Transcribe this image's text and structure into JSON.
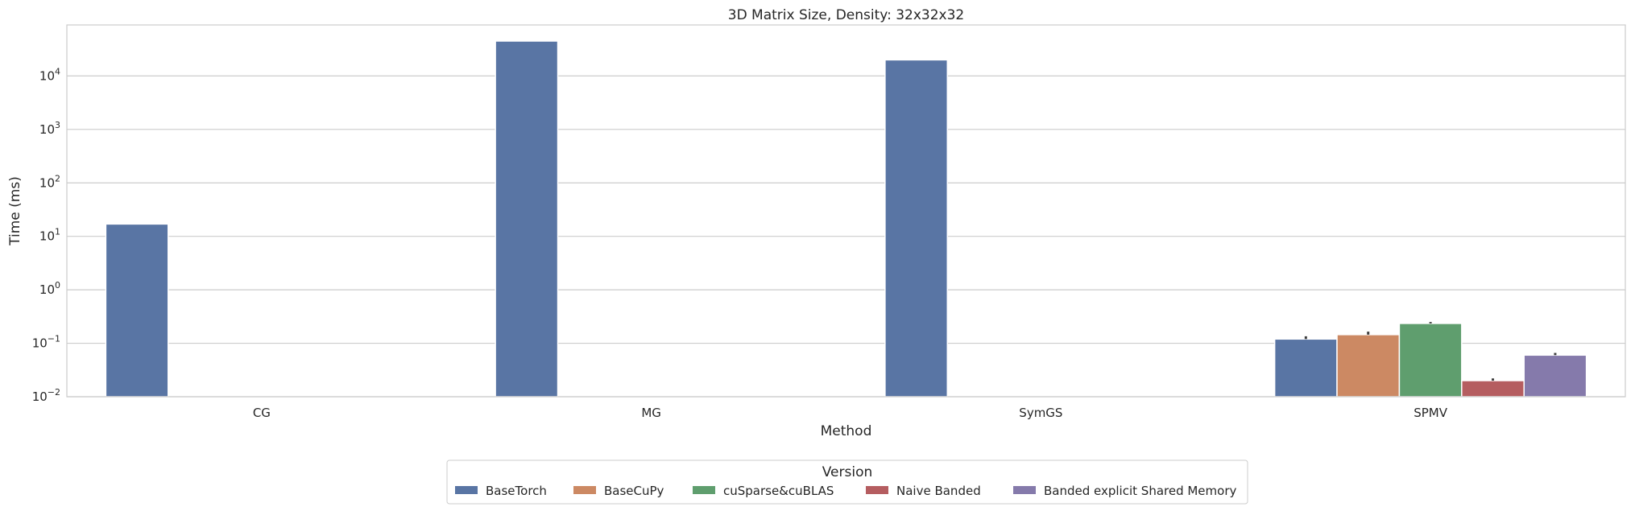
{
  "chart_data": {
    "type": "bar",
    "title": "3D Matrix Size, Density: 32x32x32",
    "xlabel": "Method",
    "ylabel": "Time (ms)",
    "yscale": "log",
    "ylim": [
      0.01,
      90000
    ],
    "yticks": [
      {
        "value": 0.01,
        "base": "10",
        "exp": "−2"
      },
      {
        "value": 0.1,
        "base": "10",
        "exp": "−1"
      },
      {
        "value": 1,
        "base": "10",
        "exp": "0"
      },
      {
        "value": 10,
        "base": "10",
        "exp": "1"
      },
      {
        "value": 100,
        "base": "10",
        "exp": "2"
      },
      {
        "value": 1000,
        "base": "10",
        "exp": "3"
      },
      {
        "value": 10000,
        "base": "10",
        "exp": "4"
      }
    ],
    "grid": true,
    "legend_placement": "bottom-center",
    "legend_title": "Version",
    "categories": [
      "CG",
      "MG",
      "SymGS",
      "SPMV"
    ],
    "series": [
      {
        "name": "BaseTorch",
        "color": "#5975a4",
        "values": [
          17,
          45000,
          20000,
          0.12
        ],
        "err_high": [
          null,
          null,
          null,
          0.135
        ]
      },
      {
        "name": "BaseCuPy",
        "color": "#cc8963",
        "values": [
          null,
          null,
          null,
          0.145
        ],
        "err_high": [
          null,
          null,
          null,
          0.165
        ]
      },
      {
        "name": "cuSparse&cuBLAS",
        "color": "#5f9e6e",
        "values": [
          null,
          null,
          null,
          0.235
        ],
        "err_high": [
          null,
          null,
          null,
          0.25
        ]
      },
      {
        "name": "Naive Banded",
        "color": "#b55d60",
        "values": [
          null,
          null,
          null,
          0.02
        ],
        "err_high": [
          null,
          null,
          null,
          0.022
        ]
      },
      {
        "name": "Banded explicit Shared Memory",
        "color": "#857aab",
        "values": [
          null,
          null,
          null,
          0.06
        ],
        "err_high": [
          null,
          null,
          null,
          0.066
        ]
      }
    ]
  }
}
